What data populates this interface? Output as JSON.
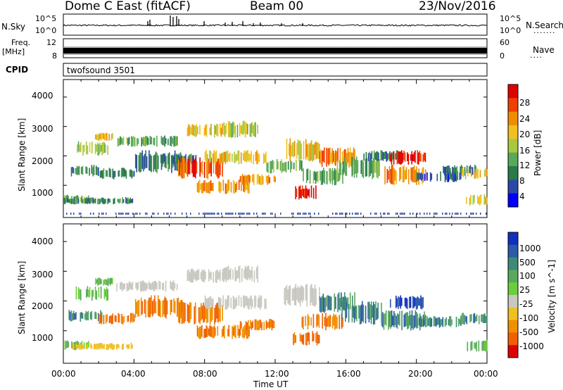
{
  "header": {
    "station": "Dome C East (fitACF)",
    "beam": "Beam 00",
    "date": "23/Nov/2016"
  },
  "top_panels": {
    "nsky_label": "N.Sky",
    "nsky_ticks": [
      "10^5",
      "10^0"
    ],
    "nsearch_label": "N.Search",
    "freq_label_line1": "Freq.",
    "freq_label_line2": "[MHz]",
    "freq_ticks": [
      "12",
      "8"
    ],
    "nave_label": "Nave",
    "nave_ticks": [
      "60",
      "0"
    ],
    "cpid_label": "CPID",
    "cpid_value": "twofsound 3501"
  },
  "colors": {
    "power_scale": [
      "#0000ff",
      "#2b48a6",
      "#2a7a4a",
      "#5aa85a",
      "#a8c840",
      "#f0c020",
      "#f08c00",
      "#f04000",
      "#e00000"
    ],
    "velocity_scale": [
      "#1030c0",
      "#2c5aa8",
      "#3e8a78",
      "#5aa860",
      "#6ccf3a",
      "#c8c8c0",
      "#f0c020",
      "#f09000",
      "#f06000",
      "#e00000"
    ]
  },
  "chart_data": [
    {
      "type": "heatmap",
      "name": "power",
      "ylabel": "Slant Range [km]",
      "ylim": [
        0,
        4500
      ],
      "yticks": [
        "1000",
        "2000",
        "3000",
        "4000"
      ],
      "colorbar_label": "Power [dB]",
      "colorbar_ticks": [
        "4",
        "8",
        "12",
        "16",
        "20",
        "24",
        "28"
      ],
      "clim": [
        0,
        32
      ],
      "patches": [
        {
          "t": [
            0.0,
            1.6
          ],
          "r": [
            350,
            700
          ],
          "v": 12
        },
        {
          "t": [
            0.0,
            4.0
          ],
          "r": [
            350,
            600
          ],
          "v": 10
        },
        {
          "t": [
            0.3,
            2.2
          ],
          "r": [
            1300,
            1700
          ],
          "v": 8
        },
        {
          "t": [
            0.7,
            2.5
          ],
          "r": [
            2000,
            2500
          ],
          "v": 16
        },
        {
          "t": [
            1.8,
            2.8
          ],
          "r": [
            2500,
            2800
          ],
          "v": 18
        },
        {
          "t": [
            2.0,
            4.0
          ],
          "r": [
            1200,
            1600
          ],
          "v": 10
        },
        {
          "t": [
            3.0,
            4.8
          ],
          "r": [
            2300,
            2700
          ],
          "v": 12
        },
        {
          "t": [
            4.0,
            6.8
          ],
          "r": [
            1400,
            2200
          ],
          "v": 8
        },
        {
          "t": [
            4.5,
            6.5
          ],
          "r": [
            2300,
            2700
          ],
          "v": 14
        },
        {
          "t": [
            5.5,
            7.5
          ],
          "r": [
            1700,
            2100
          ],
          "v": 10
        },
        {
          "t": [
            6.5,
            9.0
          ],
          "r": [
            1200,
            2000
          ],
          "v": 28
        },
        {
          "t": [
            7.0,
            9.0
          ],
          "r": [
            2600,
            3100
          ],
          "v": 18
        },
        {
          "t": [
            7.5,
            10.5
          ],
          "r": [
            700,
            1200
          ],
          "v": 24
        },
        {
          "t": [
            8.0,
            11.5
          ],
          "r": [
            1700,
            2200
          ],
          "v": 20
        },
        {
          "t": [
            9.0,
            11.0
          ],
          "r": [
            2600,
            3200
          ],
          "v": 16
        },
        {
          "t": [
            10.0,
            12.0
          ],
          "r": [
            1000,
            1400
          ],
          "v": 22
        },
        {
          "t": [
            11.5,
            13.5
          ],
          "r": [
            1400,
            1900
          ],
          "v": 12
        },
        {
          "t": [
            12.5,
            14.5
          ],
          "r": [
            1800,
            2600
          ],
          "v": 20
        },
        {
          "t": [
            13.0,
            14.5
          ],
          "r": [
            500,
            1000
          ],
          "v": 30
        },
        {
          "t": [
            13.5,
            15.8
          ],
          "r": [
            1000,
            1600
          ],
          "v": 14
        },
        {
          "t": [
            14.5,
            16.5
          ],
          "r": [
            1600,
            2300
          ],
          "v": 22
        },
        {
          "t": [
            15.5,
            18.0
          ],
          "r": [
            1200,
            2000
          ],
          "v": 12
        },
        {
          "t": [
            17.0,
            19.0
          ],
          "r": [
            1800,
            2200
          ],
          "v": 10
        },
        {
          "t": [
            18.0,
            20.5
          ],
          "r": [
            1000,
            1700
          ],
          "v": 24
        },
        {
          "t": [
            18.5,
            20.5
          ],
          "r": [
            1700,
            2200
          ],
          "v": 30
        },
        {
          "t": [
            20.0,
            22.5
          ],
          "r": [
            1100,
            1500
          ],
          "v": 6
        },
        {
          "t": [
            21.5,
            23.5
          ],
          "r": [
            1300,
            1700
          ],
          "v": 8
        },
        {
          "t": [
            22.5,
            24.0
          ],
          "r": [
            1200,
            1600
          ],
          "v": 18
        },
        {
          "t": [
            22.8,
            24.0
          ],
          "r": [
            300,
            700
          ],
          "v": 20
        }
      ]
    },
    {
      "type": "heatmap",
      "name": "velocity",
      "ylabel": "Slant Range [km]",
      "ylim": [
        0,
        4500
      ],
      "yticks": [
        "1000",
        "2000",
        "3000",
        "4000"
      ],
      "colorbar_label": "Velocity [m s^-1]",
      "colorbar_ticks": [
        "1000",
        "500",
        "100",
        "25",
        "-25",
        "-100",
        "-500",
        "-1000"
      ],
      "patches": [
        {
          "t": [
            0.0,
            1.6
          ],
          "r": [
            350,
            700
          ],
          "v": "green"
        },
        {
          "t": [
            0.5,
            4.0
          ],
          "r": [
            350,
            600
          ],
          "v": "yellow"
        },
        {
          "t": [
            0.3,
            2.2
          ],
          "r": [
            1300,
            1700
          ],
          "v": "teal"
        },
        {
          "t": [
            0.7,
            2.5
          ],
          "r": [
            2000,
            2500
          ],
          "v": "green"
        },
        {
          "t": [
            1.8,
            2.8
          ],
          "r": [
            2500,
            2800
          ],
          "v": "green"
        },
        {
          "t": [
            2.0,
            4.0
          ],
          "r": [
            1200,
            1600
          ],
          "v": "orange"
        },
        {
          "t": [
            3.0,
            4.8
          ],
          "r": [
            2300,
            2700
          ],
          "v": "grey"
        },
        {
          "t": [
            4.0,
            6.8
          ],
          "r": [
            1400,
            2200
          ],
          "v": "orange"
        },
        {
          "t": [
            4.5,
            6.5
          ],
          "r": [
            2300,
            2700
          ],
          "v": "grey"
        },
        {
          "t": [
            6.5,
            9.0
          ],
          "r": [
            1200,
            2000
          ],
          "v": "orange"
        },
        {
          "t": [
            7.0,
            9.0
          ],
          "r": [
            2600,
            3100
          ],
          "v": "grey"
        },
        {
          "t": [
            7.5,
            10.5
          ],
          "r": [
            700,
            1200
          ],
          "v": "orange"
        },
        {
          "t": [
            8.0,
            11.5
          ],
          "r": [
            1700,
            2200
          ],
          "v": "grey"
        },
        {
          "t": [
            9.0,
            11.0
          ],
          "r": [
            2600,
            3200
          ],
          "v": "grey"
        },
        {
          "t": [
            10.0,
            12.0
          ],
          "r": [
            1000,
            1400
          ],
          "v": "orange"
        },
        {
          "t": [
            12.5,
            14.5
          ],
          "r": [
            1800,
            2600
          ],
          "v": "grey"
        },
        {
          "t": [
            13.0,
            14.5
          ],
          "r": [
            500,
            1000
          ],
          "v": "orange"
        },
        {
          "t": [
            13.5,
            15.8
          ],
          "r": [
            1000,
            1600
          ],
          "v": "orange"
        },
        {
          "t": [
            14.5,
            16.5
          ],
          "r": [
            1600,
            2300
          ],
          "v": "teal"
        },
        {
          "t": [
            15.5,
            18.0
          ],
          "r": [
            1200,
            2000
          ],
          "v": "teal"
        },
        {
          "t": [
            18.0,
            20.5
          ],
          "r": [
            1000,
            1700
          ],
          "v": "teal"
        },
        {
          "t": [
            18.5,
            20.5
          ],
          "r": [
            1700,
            2200
          ],
          "v": "blue"
        },
        {
          "t": [
            20.0,
            22.5
          ],
          "r": [
            1100,
            1500
          ],
          "v": "teal"
        },
        {
          "t": [
            22.5,
            24.0
          ],
          "r": [
            1200,
            1600
          ],
          "v": "teal"
        },
        {
          "t": [
            22.8,
            24.0
          ],
          "r": [
            300,
            700
          ],
          "v": "green"
        }
      ]
    }
  ],
  "xaxis": {
    "ticks": [
      "00:00",
      "04:00",
      "08:00",
      "12:00",
      "16:00",
      "20:00",
      "00:00"
    ],
    "label": "Time UT"
  }
}
